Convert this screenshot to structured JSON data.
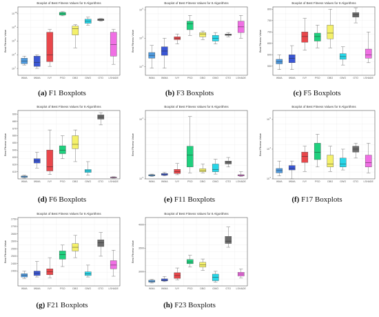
{
  "algorithms": [
    "WMA",
    "IWMA",
    "IVY",
    "PSO",
    "DBO",
    "GWO",
    "GTO",
    "LSHADE"
  ],
  "algorithm_colors": [
    "#4f9be0",
    "#3a56d4",
    "#e8474b",
    "#1fd07e",
    "#f4f06a",
    "#27d6e8",
    "#6b6b6b",
    "#f06fe4"
  ],
  "panel_title": "Boxplot of Best Fitness Values for 8 Algorithms",
  "y_axis_label": "Best Fitness Value",
  "chart_data": [
    {
      "type": "box",
      "caption_letter": "(a)",
      "caption_text": "F1 Boxplots",
      "log": true,
      "ylim_exp": [
        1,
        11
      ],
      "yticks": [
        2,
        4,
        6,
        8,
        10
      ],
      "boxes": [
        {
          "min": 2.5,
          "q1": 2.7,
          "med": 3.1,
          "q3": 3.5,
          "max": 3.8
        },
        {
          "min": 2.0,
          "q1": 2.3,
          "med": 2.9,
          "q3": 3.8,
          "max": 4.0
        },
        {
          "min": 2.3,
          "q1": 3.0,
          "med": 4.0,
          "q3": 7.3,
          "max": 7.7
        },
        {
          "min": 9.7,
          "q1": 9.8,
          "med": 10.0,
          "q3": 10.2,
          "max": 10.3
        },
        {
          "min": 5.0,
          "q1": 6.9,
          "med": 7.8,
          "q3": 8.2,
          "max": 8.4
        },
        {
          "min": 8.3,
          "q1": 8.6,
          "med": 8.9,
          "q3": 9.2,
          "max": 9.5
        },
        {
          "min": 8.9,
          "q1": 9.0,
          "med": 9.1,
          "q3": 9.25,
          "max": 9.3
        },
        {
          "min": 2.6,
          "q1": 3.8,
          "med": 5.5,
          "q3": 7.3,
          "max": 7.7
        }
      ]
    },
    {
      "type": "box",
      "caption_letter": "(b)",
      "caption_text": "F3 Boxplots",
      "log": true,
      "ylim_exp": [
        3.7,
        6.1
      ],
      "yticks": [
        4,
        5,
        6
      ],
      "boxes": [
        {
          "min": 3.95,
          "q1": 4.3,
          "med": 4.4,
          "q3": 4.5,
          "max": 4.75
        },
        {
          "min": 3.95,
          "q1": 4.4,
          "med": 4.55,
          "q3": 4.7,
          "max": 5.0
        },
        {
          "min": 4.8,
          "q1": 4.95,
          "med": 5.0,
          "q3": 5.05,
          "max": 5.15
        },
        {
          "min": 5.1,
          "q1": 5.3,
          "med": 5.5,
          "q3": 5.6,
          "max": 5.8
        },
        {
          "min": 4.95,
          "q1": 5.05,
          "med": 5.15,
          "q3": 5.2,
          "max": 5.25
        },
        {
          "min": 4.8,
          "q1": 4.9,
          "med": 5.0,
          "q3": 5.1,
          "max": 5.2
        },
        {
          "min": 5.05,
          "q1": 5.1,
          "med": 5.12,
          "q3": 5.15,
          "max": 5.2
        },
        {
          "min": 5.0,
          "q1": 5.2,
          "med": 5.4,
          "q3": 5.6,
          "max": 5.8
        }
      ]
    },
    {
      "type": "box",
      "caption_letter": "(c)",
      "caption_text": "F5 Boxplots",
      "log": false,
      "ylim": [
        510,
        810
      ],
      "yticks": [
        550,
        600,
        650,
        700,
        750,
        800
      ],
      "boxes": [
        {
          "min": 535,
          "q1": 560,
          "med": 570,
          "q3": 580,
          "max": 600
        },
        {
          "min": 535,
          "q1": 565,
          "med": 585,
          "q3": 600,
          "max": 640
        },
        {
          "min": 620,
          "q1": 655,
          "med": 680,
          "q3": 700,
          "max": 760
        },
        {
          "min": 630,
          "q1": 660,
          "med": 680,
          "q3": 695,
          "max": 730
        },
        {
          "min": 630,
          "q1": 670,
          "med": 695,
          "q3": 730,
          "max": 800
        },
        {
          "min": 555,
          "q1": 580,
          "med": 592,
          "q3": 605,
          "max": 635
        },
        {
          "min": 740,
          "q1": 765,
          "med": 775,
          "q3": 785,
          "max": 805
        },
        {
          "min": 565,
          "q1": 585,
          "med": 600,
          "q3": 625,
          "max": 700
        }
      ]
    },
    {
      "type": "box",
      "caption_letter": "(d)",
      "caption_text": "F6 Boxplots",
      "log": false,
      "ylim": [
        600,
        695
      ],
      "yticks": [
        610,
        620,
        630,
        640,
        650,
        660,
        670,
        680,
        690
      ],
      "boxes": [
        {
          "min": 601,
          "q1": 602,
          "med": 603,
          "q3": 604,
          "max": 605
        },
        {
          "min": 615,
          "q1": 622,
          "med": 625,
          "q3": 628,
          "max": 637
        },
        {
          "min": 606,
          "q1": 611,
          "med": 617,
          "q3": 640,
          "max": 668
        },
        {
          "min": 628,
          "q1": 635,
          "med": 640,
          "q3": 646,
          "max": 660
        },
        {
          "min": 624,
          "q1": 642,
          "med": 648,
          "q3": 660,
          "max": 668
        },
        {
          "min": 605,
          "q1": 609,
          "med": 611,
          "q3": 613,
          "max": 624
        },
        {
          "min": 675,
          "q1": 683,
          "med": 686,
          "q3": 689,
          "max": 692
        },
        {
          "min": 601,
          "q1": 601.5,
          "med": 602,
          "q3": 602.5,
          "max": 603
        }
      ]
    },
    {
      "type": "box",
      "caption_letter": "(e)",
      "caption_text": "F11 Boxplots",
      "log": true,
      "ylim_exp": [
        3.0,
        4.15
      ],
      "yticks": [
        3,
        4
      ],
      "boxes": [
        {
          "min": 3.04,
          "q1": 3.05,
          "med": 3.06,
          "q3": 3.07,
          "max": 3.08
        },
        {
          "min": 3.05,
          "q1": 3.06,
          "med": 3.08,
          "q3": 3.09,
          "max": 3.11
        },
        {
          "min": 3.07,
          "q1": 3.09,
          "med": 3.12,
          "q3": 3.16,
          "max": 3.26
        },
        {
          "min": 3.1,
          "q1": 3.2,
          "med": 3.4,
          "q3": 3.55,
          "max": 4.05
        },
        {
          "min": 3.1,
          "q1": 3.12,
          "med": 3.14,
          "q3": 3.17,
          "max": 3.25
        },
        {
          "min": 3.08,
          "q1": 3.12,
          "med": 3.16,
          "q3": 3.25,
          "max": 3.33
        },
        {
          "min": 3.2,
          "q1": 3.25,
          "med": 3.28,
          "q3": 3.3,
          "max": 3.36
        },
        {
          "min": 3.04,
          "q1": 3.05,
          "med": 3.06,
          "q3": 3.07,
          "max": 3.12
        }
      ]
    },
    {
      "type": "box",
      "caption_letter": "(f)",
      "caption_text": "F17 Boxplots",
      "log": true,
      "ylim_exp": [
        3.0,
        5.3
      ],
      "yticks": [
        3,
        4,
        5
      ],
      "boxes": [
        {
          "min": 3.1,
          "q1": 3.2,
          "med": 3.28,
          "q3": 3.35,
          "max": 3.6
        },
        {
          "min": 3.0,
          "q1": 3.3,
          "med": 3.35,
          "q3": 3.45,
          "max": 3.6
        },
        {
          "min": 3.25,
          "q1": 3.55,
          "med": 3.75,
          "q3": 3.9,
          "max": 4.1
        },
        {
          "min": 3.4,
          "q1": 3.65,
          "med": 3.9,
          "q3": 4.2,
          "max": 4.5
        },
        {
          "min": 3.25,
          "q1": 3.4,
          "med": 3.5,
          "q3": 3.8,
          "max": 4.1
        },
        {
          "min": 3.3,
          "q1": 3.4,
          "med": 3.5,
          "q3": 3.7,
          "max": 4.0
        },
        {
          "min": 3.7,
          "q1": 3.9,
          "med": 4.0,
          "q3": 4.1,
          "max": 4.2
        },
        {
          "min": 3.2,
          "q1": 3.4,
          "med": 3.55,
          "q3": 3.8,
          "max": 4.2
        }
      ]
    },
    {
      "type": "box",
      "caption_letter": "(g)",
      "caption_text": "F21 Boxplots",
      "log": false,
      "ylim": [
        2300,
        2760
      ],
      "yticks": [
        2400,
        2450,
        2500,
        2550,
        2600,
        2650,
        2700,
        2750
      ],
      "boxes": [
        {
          "min": 2350,
          "q1": 2360,
          "med": 2372,
          "q3": 2382,
          "max": 2400
        },
        {
          "min": 2360,
          "q1": 2370,
          "med": 2385,
          "q3": 2400,
          "max": 2465
        },
        {
          "min": 2355,
          "q1": 2375,
          "med": 2395,
          "q3": 2415,
          "max": 2490
        },
        {
          "min": 2430,
          "q1": 2480,
          "med": 2510,
          "q3": 2535,
          "max": 2575
        },
        {
          "min": 2490,
          "q1": 2535,
          "med": 2560,
          "q3": 2585,
          "max": 2640
        },
        {
          "min": 2360,
          "q1": 2370,
          "med": 2382,
          "q3": 2395,
          "max": 2440
        },
        {
          "min": 2500,
          "q1": 2565,
          "med": 2590,
          "q3": 2610,
          "max": 2660
        },
        {
          "min": 2365,
          "q1": 2415,
          "med": 2440,
          "q3": 2470,
          "max": 2540
        }
      ]
    },
    {
      "type": "box",
      "caption_letter": "(h)",
      "caption_text": "F23 Boxplots",
      "log": false,
      "ylim": [
        2700,
        4150
      ],
      "yticks": [
        3000,
        3500,
        4000
      ],
      "boxes": [
        {
          "min": 2760,
          "q1": 2780,
          "med": 2800,
          "q3": 2820,
          "max": 2840
        },
        {
          "min": 2790,
          "q1": 2805,
          "med": 2825,
          "q3": 2850,
          "max": 2900
        },
        {
          "min": 2830,
          "q1": 2860,
          "med": 2920,
          "q3": 2980,
          "max": 3080
        },
        {
          "min": 3100,
          "q1": 3170,
          "med": 3210,
          "q3": 3260,
          "max": 3350
        },
        {
          "min": 3030,
          "q1": 3100,
          "med": 3150,
          "q3": 3200,
          "max": 3270
        },
        {
          "min": 2780,
          "q1": 2810,
          "med": 2880,
          "q3": 2950,
          "max": 3010
        },
        {
          "min": 3520,
          "q1": 3600,
          "med": 3650,
          "q3": 3750,
          "max": 3950
        },
        {
          "min": 2870,
          "q1": 2910,
          "med": 2950,
          "q3": 2990,
          "max": 3060
        }
      ]
    }
  ]
}
